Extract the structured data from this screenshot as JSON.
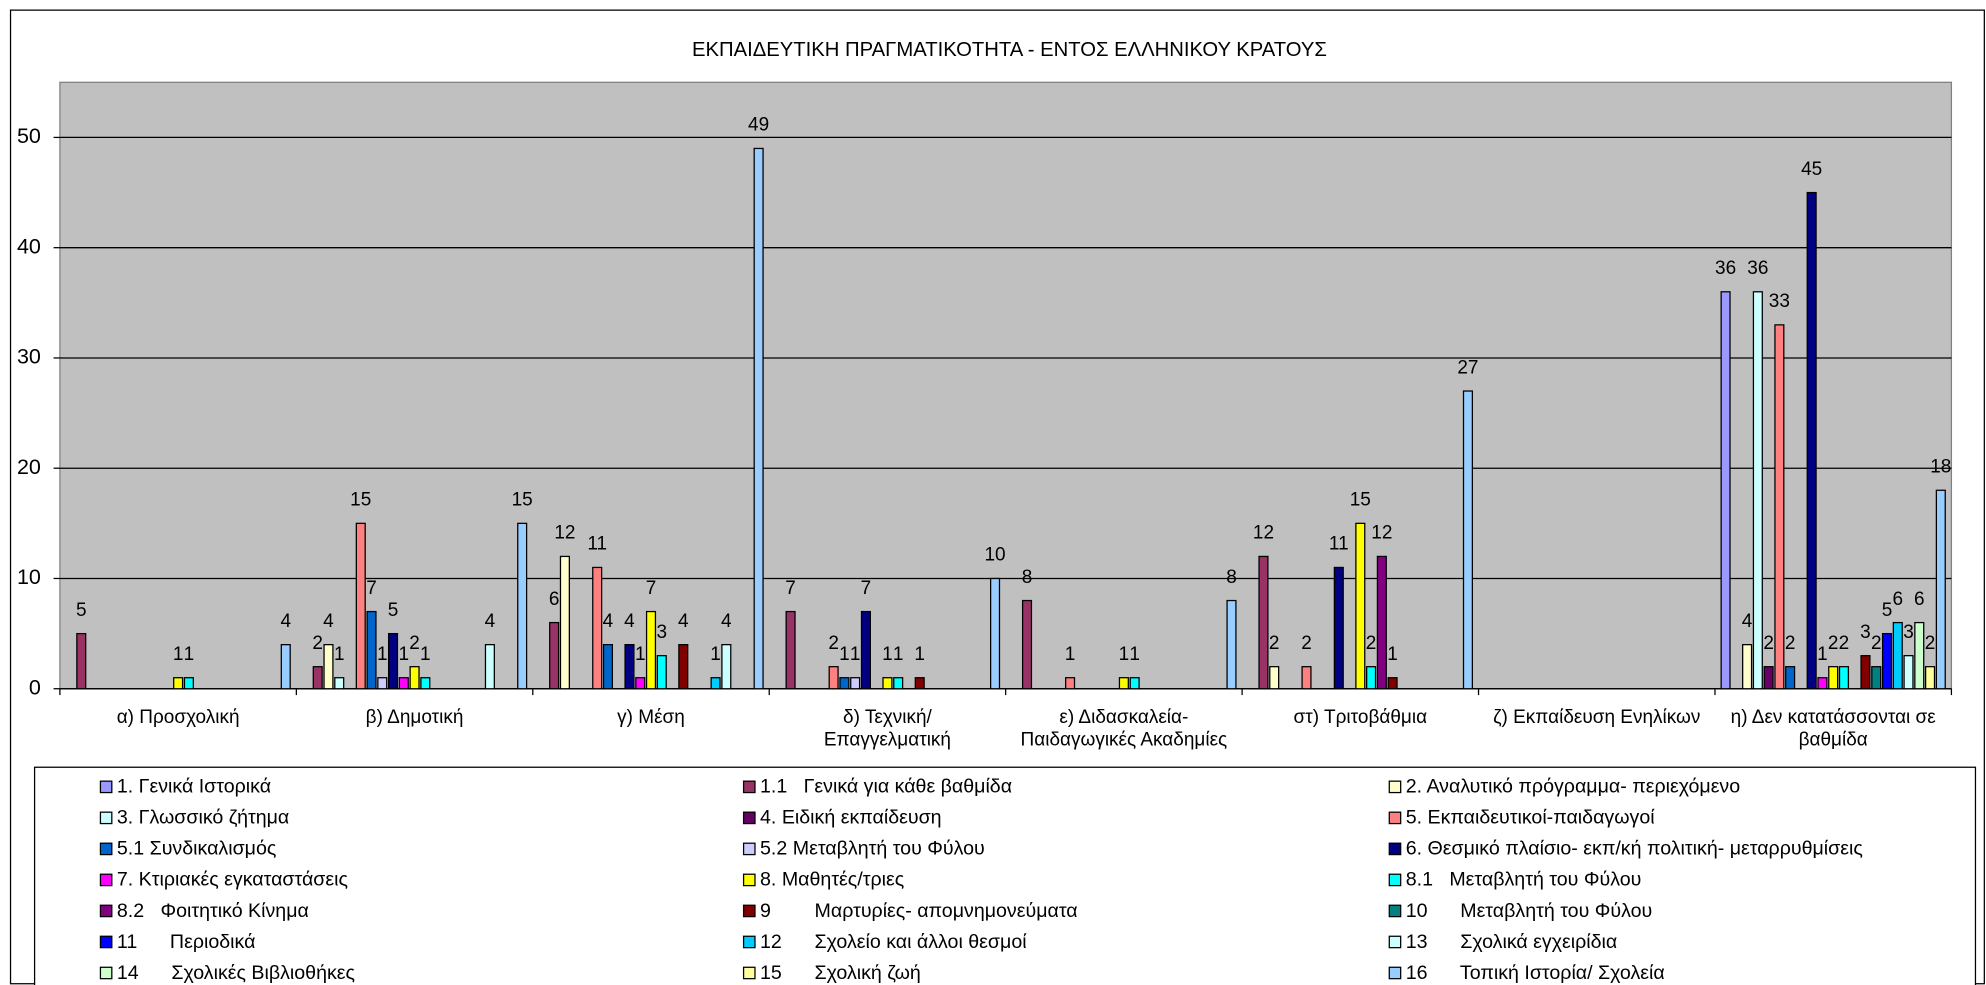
{
  "chart_data": {
    "type": "bar",
    "title": "ΕΚΠΑΙΔΕΥΤΙΚΗ ΠΡΑΓΜΑΤΙΚΟΤΗΤΑ - ΕΝΤΟΣ ΕΛΛΗΝΙΚΟΥ ΚΡΑΤΟΥΣ",
    "categories": [
      "α) Προσχολική",
      "β) Δημοτική",
      "γ) Μέση",
      "δ) Τεχνική/ Επαγγελματική",
      "ε) Διδασκαλεία-Παιδαγωγικές Ακαδημίες",
      "στ) Τριτοβάθμια",
      "ζ) Εκπαίδευση Ενηλίκων",
      "η) Δεν κατατάσσονται σε βαθμίδα"
    ],
    "ylim": [
      0,
      55
    ],
    "yticks": [
      0,
      10,
      20,
      30,
      40,
      50
    ],
    "grid": true,
    "legend": "bottom",
    "series": [
      {
        "name": "1. Γενικά Ιστορικά",
        "color": "#9999FF",
        "values": [
          0,
          0,
          0,
          0,
          0,
          0,
          0,
          36
        ]
      },
      {
        "name": "1.1   Γενικά για κάθε βαθμίδα",
        "color": "#993366",
        "values": [
          5,
          2,
          6,
          7,
          8,
          12,
          0,
          0
        ]
      },
      {
        "name": "2. Αναλυτικό πρόγραμμα- περιεχόμενο",
        "color": "#FFFFCC",
        "values": [
          0,
          4,
          12,
          0,
          0,
          2,
          0,
          4
        ]
      },
      {
        "name": "3. Γλωσσικό ζήτημα",
        "color": "#CCFFFF",
        "values": [
          0,
          1,
          0,
          0,
          0,
          0,
          0,
          36
        ]
      },
      {
        "name": "4. Ειδική εκπαίδευση",
        "color": "#660066",
        "values": [
          0,
          0,
          0,
          0,
          0,
          0,
          0,
          2
        ]
      },
      {
        "name": "5. Εκπαιδευτικοί-παιδαγωγοί",
        "color": "#FF8080",
        "values": [
          0,
          15,
          11,
          2,
          1,
          2,
          0,
          33
        ]
      },
      {
        "name": "5.1 Συνδικαλισμός",
        "color": "#0066CC",
        "values": [
          0,
          7,
          4,
          1,
          0,
          0,
          0,
          2
        ]
      },
      {
        "name": "5.2 Μεταβλητή του Φύλου",
        "color": "#CCCCFF",
        "values": [
          0,
          1,
          0,
          1,
          0,
          0,
          0,
          0
        ]
      },
      {
        "name": "6. Θεσμικό πλαίσιο- εκπ/κή πολιτική- μεταρρυθμίσεις",
        "color": "#000080",
        "values": [
          0,
          5,
          4,
          7,
          0,
          11,
          0,
          45
        ]
      },
      {
        "name": "7. Κτιριακές εγκαταστάσεις",
        "color": "#FF00FF",
        "values": [
          0,
          1,
          1,
          0,
          0,
          0,
          0,
          1
        ]
      },
      {
        "name": "8. Μαθητές/τριες",
        "color": "#FFFF00",
        "values": [
          1,
          2,
          7,
          1,
          1,
          15,
          0,
          2
        ]
      },
      {
        "name": "8.1   Μεταβλητή του Φύλου",
        "color": "#00FFFF",
        "values": [
          1,
          1,
          3,
          1,
          1,
          2,
          0,
          2
        ]
      },
      {
        "name": "8.2   Φοιτητικό Κίνημα",
        "color": "#800080",
        "values": [
          0,
          0,
          0,
          0,
          0,
          12,
          0,
          0
        ]
      },
      {
        "name": "9        Μαρτυρίες- απομνημονεύματα",
        "color": "#800000",
        "values": [
          0,
          0,
          4,
          1,
          0,
          1,
          0,
          3
        ]
      },
      {
        "name": "10      Μεταβλητή του Φύλου",
        "color": "#008080",
        "values": [
          0,
          0,
          0,
          0,
          0,
          0,
          0,
          2
        ]
      },
      {
        "name": "11      Περιοδικά",
        "color": "#0000FF",
        "values": [
          0,
          0,
          0,
          0,
          0,
          0,
          0,
          5
        ]
      },
      {
        "name": "12      Σχολείο και άλλοι θεσμοί",
        "color": "#00CCFF",
        "values": [
          0,
          0,
          1,
          0,
          0,
          0,
          0,
          6
        ]
      },
      {
        "name": "13      Σχολικά εγχειρίδια",
        "color": "#CCFFFF",
        "values": [
          0,
          4,
          4,
          0,
          0,
          0,
          0,
          3
        ]
      },
      {
        "name": "14      Σχολικές Βιβλιοθήκες",
        "color": "#CCFFCC",
        "values": [
          0,
          0,
          0,
          0,
          0,
          0,
          0,
          6
        ]
      },
      {
        "name": "15      Σχολική ζωή",
        "color": "#FFFF99",
        "values": [
          0,
          0,
          0,
          0,
          0,
          0,
          0,
          2
        ]
      },
      {
        "name": "16      Τοπική Ιστορία/ Σχολεία",
        "color": "#99CCFF",
        "values": [
          4,
          15,
          49,
          10,
          8,
          27,
          0,
          18
        ]
      }
    ]
  }
}
